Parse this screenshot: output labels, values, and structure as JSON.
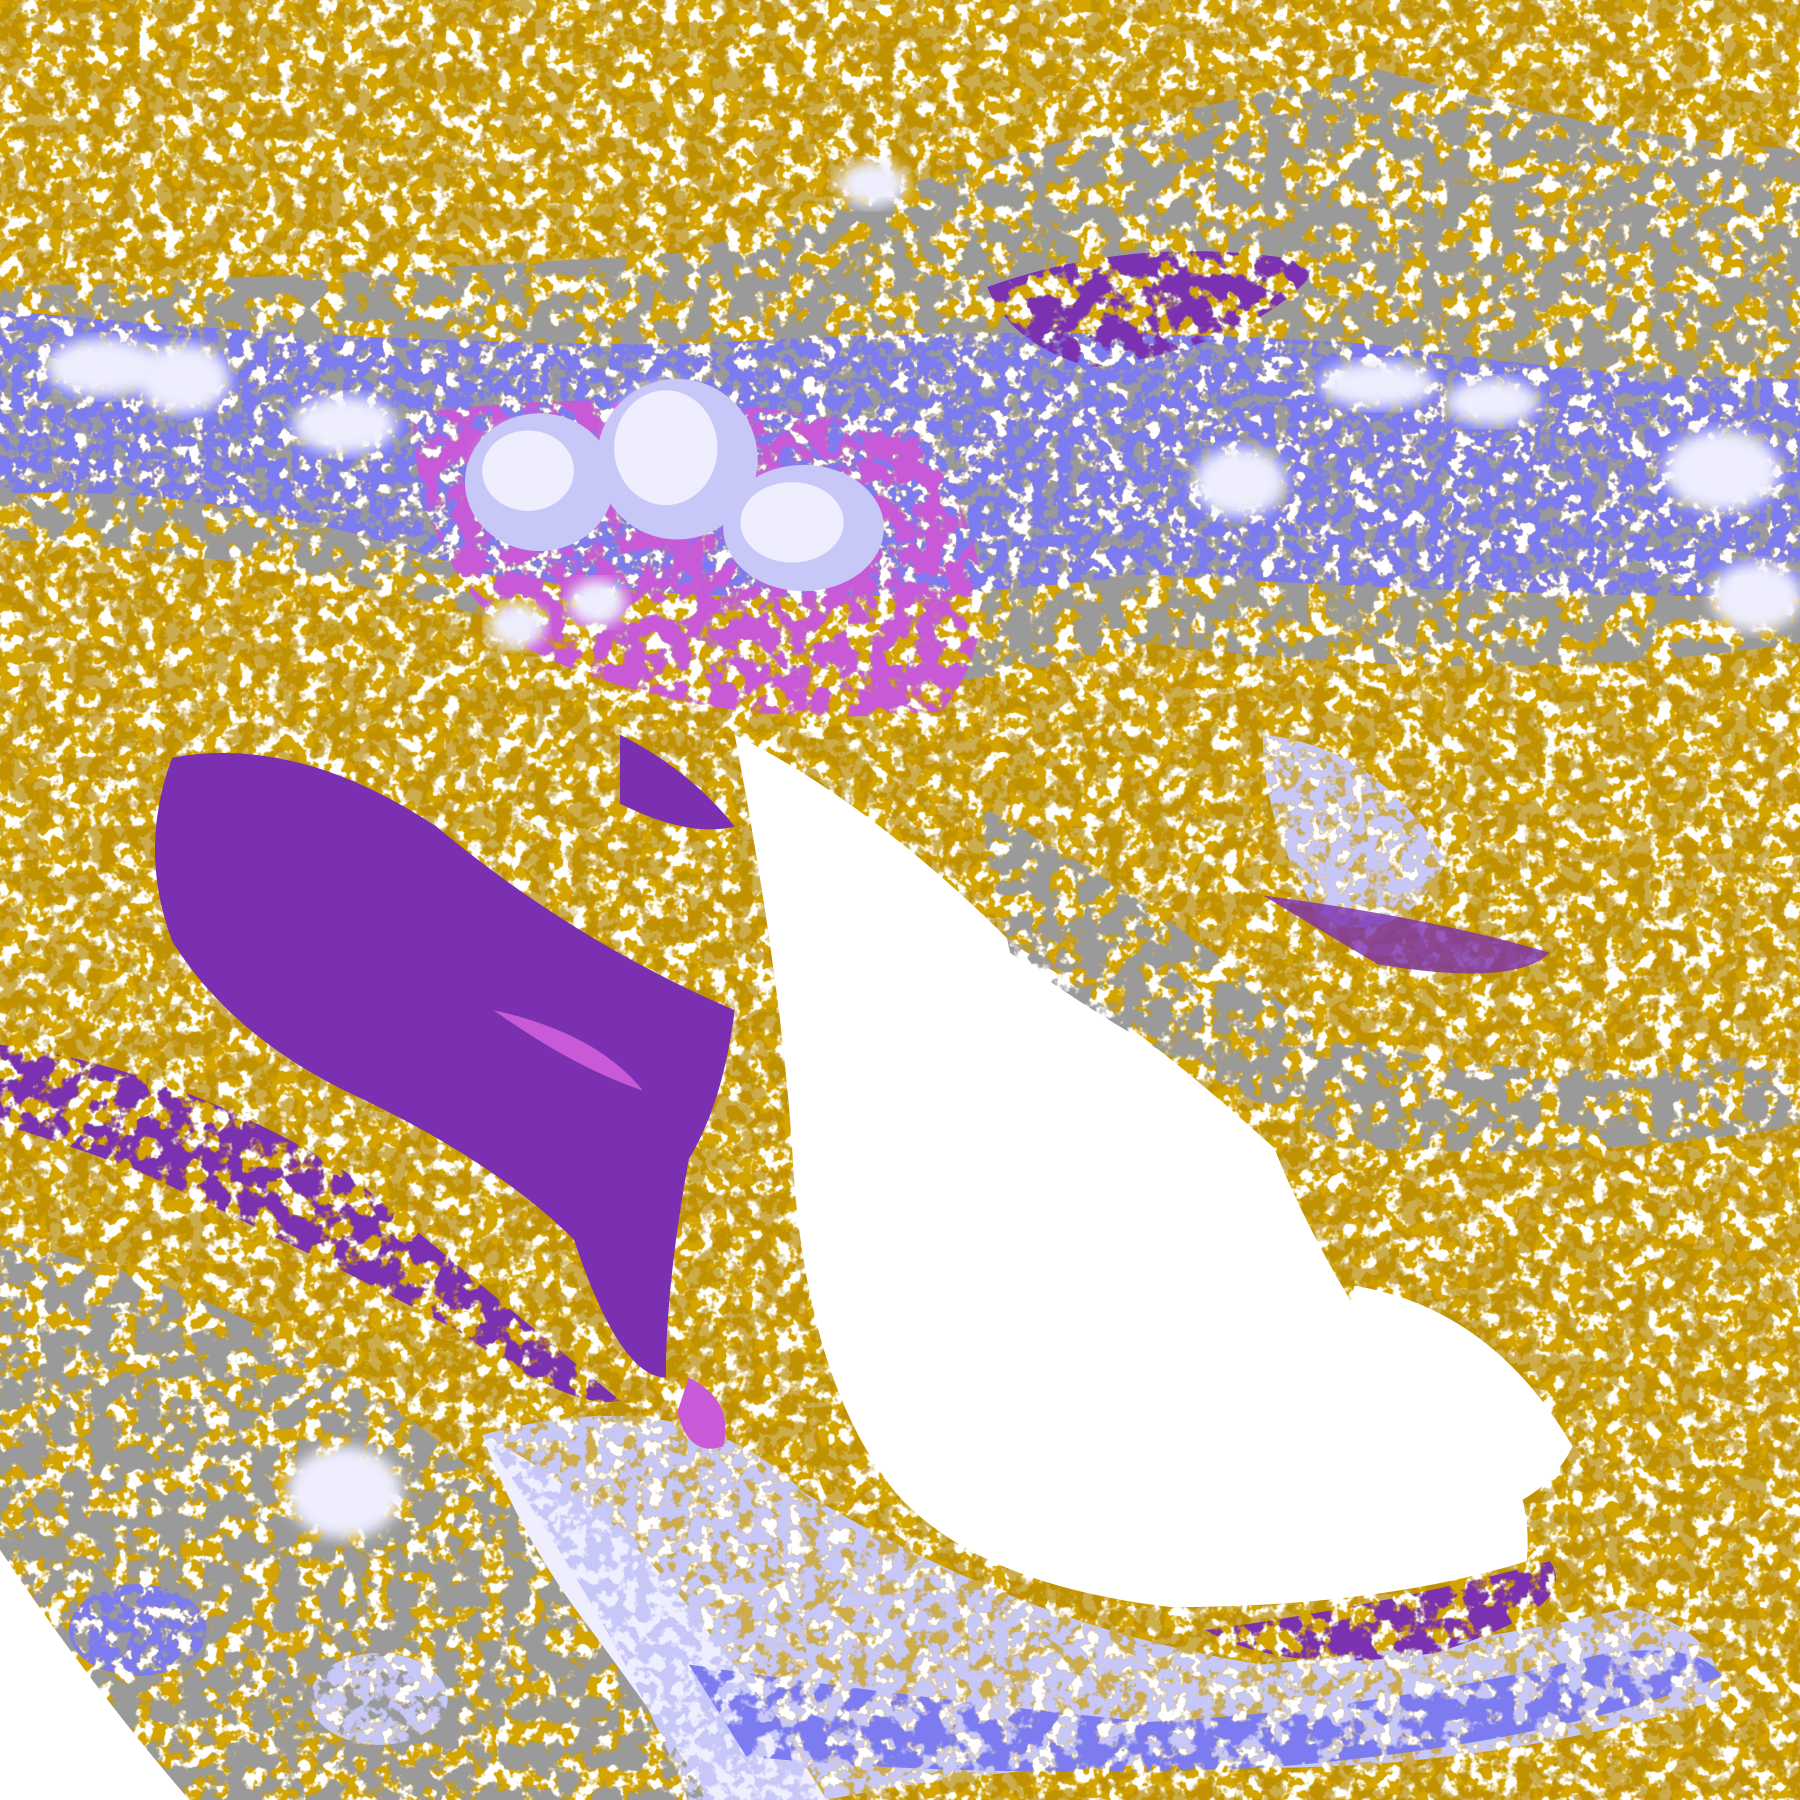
{
  "image": {
    "kind": "satellite cloud classification composite",
    "colors": {
      "background_clear": "#ffffff",
      "gold": "#d4a400",
      "dark_gold": "#b88a00",
      "purple": "#7a30b0",
      "magenta": "#c85ad8",
      "gray": "#9a9a9a",
      "blue": "#7b7bf0",
      "lavender": "#c8c8f8",
      "pale": "#eeeeff"
    }
  }
}
